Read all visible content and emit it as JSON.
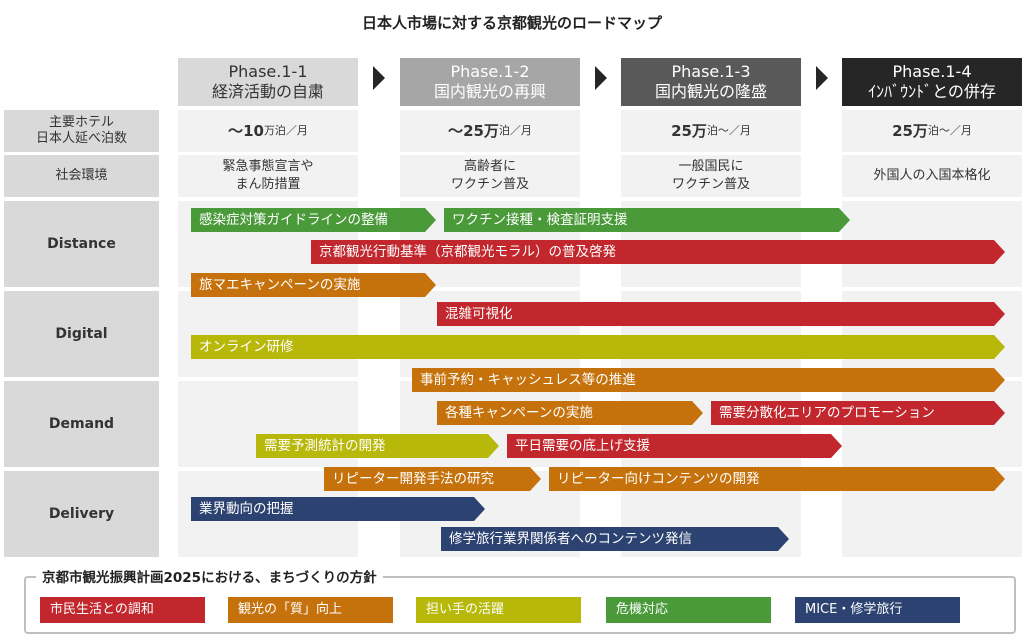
{
  "title": "日本人市場に対する京都観光のロードマップ",
  "phases": [
    {
      "code": "Phase.1-1",
      "name": "経済活動の自粛"
    },
    {
      "code": "Phase.1-2",
      "name": "国内観光の再興"
    },
    {
      "code": "Phase.1-3",
      "name": "国内観光の隆盛"
    },
    {
      "code": "Phase.1-4",
      "name": "ｲﾝﾊﾞｳﾝﾄﾞとの併存"
    }
  ],
  "rows": {
    "stays_label": "主要ホテル\n日本人延べ泊数",
    "stays": [
      {
        "prefix": "〜",
        "num": "10",
        "unit": "万泊／月"
      },
      {
        "prefix": "〜",
        "num": "25万",
        "unit": "泊／月"
      },
      {
        "prefix": "",
        "num": "25万",
        "unit": "泊〜／月"
      },
      {
        "prefix": "",
        "num": "25万",
        "unit": "泊〜／月"
      }
    ],
    "env_label": "社会環境",
    "env": [
      "緊急事態宣言や\nまん防措置",
      "高齢者に\nワクチン普及",
      "一般国民に\nワクチン普及",
      "外国人の入国本格化"
    ]
  },
  "sections": [
    "Distance",
    "Digital",
    "Demand",
    "Delivery"
  ],
  "bars": {
    "b1": "感染症対策ガイドラインの整備",
    "b2": "ワクチン接種・検査証明支援",
    "b3": "京都観光行動基準（京都観光モラル）の普及啓発",
    "b4": "旅マエキャンペーンの実施",
    "b5": "混雑可視化",
    "b6": "オンライン研修",
    "b7": "事前予約・キャッシュレス等の推進",
    "b8": "各種キャンペーンの実施",
    "b9": "需要分散化エリアのプロモーション",
    "b10": "需要予測統計の開発",
    "b11": "平日需要の底上げ支援",
    "b12": "リピーター開発手法の研究",
    "b13": "リピーター向けコンテンツの開発",
    "b14": "業界動向の把握",
    "b15": "修学旅行業界関係者へのコンテンツ発信"
  },
  "policy": {
    "title": "京都市観光振興計画2025における、まちづくりの方針",
    "items": [
      "市民生活との調和",
      "観光の「質」向上",
      "担い手の活躍",
      "危機対応",
      "MICE・修学旅行"
    ]
  },
  "colors": {
    "green": "#4a9a3a",
    "red": "#c1272d",
    "orange": "#c6720c",
    "lime": "#b8b80a",
    "navy": "#2c4270"
  }
}
